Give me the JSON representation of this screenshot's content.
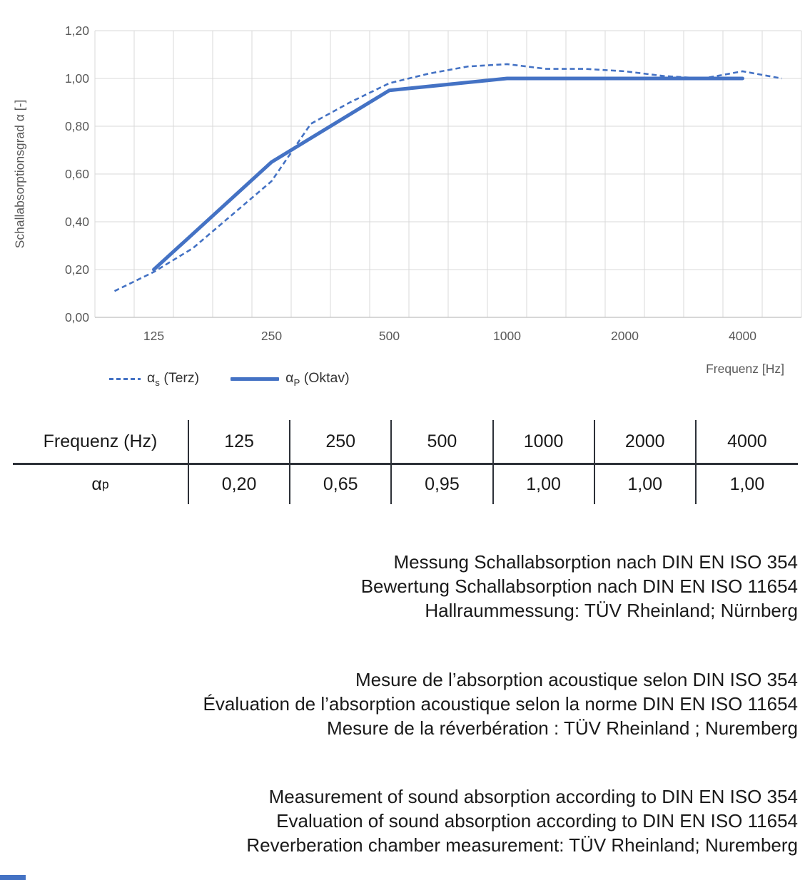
{
  "colors": {
    "line_blue": "#4472C4",
    "grid_gray": "#D9D9D9",
    "axis_line_gray": "#BFBFBF",
    "axis_text_gray": "#595959",
    "body_text": "#1A1A1A",
    "table_line": "#2D3138"
  },
  "chart": {
    "y_axis_title": "Schallabsorptionsgrad α [-]",
    "x_axis_title": "Frequenz [Hz]",
    "y_tick_labels": [
      "1,20",
      "1,00",
      "0,80",
      "0,60",
      "0,40",
      "0,20",
      "0,00"
    ],
    "x_tick_labels": [
      "125",
      "250",
      "500",
      "1000",
      "2000",
      "4000"
    ],
    "legend": {
      "terz": {
        "alpha": "α",
        "sub": "s",
        "rest": " (Terz)"
      },
      "oktav": {
        "alpha": "α",
        "sub": "P",
        "rest": " (Oktav)"
      }
    }
  },
  "chart_data": {
    "type": "line",
    "title": "",
    "xlabel": "Frequenz [Hz]",
    "ylabel": "Schallabsorptionsgrad α [-]",
    "x_scale": "logarithmic (third-octave band categories)",
    "x_categories": [
      100,
      125,
      160,
      200,
      250,
      315,
      400,
      500,
      630,
      800,
      1000,
      1250,
      1600,
      2000,
      2500,
      3150,
      4000,
      5000
    ],
    "x_tick_labels": [
      "125",
      "250",
      "500",
      "1000",
      "2000",
      "4000"
    ],
    "ylim": [
      0,
      1.2
    ],
    "y_tick_step": 0.2,
    "grid": true,
    "legend_position": "below-left",
    "series": [
      {
        "name": "αs (Terz)",
        "style": "dashed",
        "color": "#4472C4",
        "x": [
          100,
          125,
          160,
          200,
          250,
          315,
          400,
          500,
          630,
          800,
          1000,
          1250,
          1600,
          2000,
          2500,
          3150,
          4000,
          5000
        ],
        "values": [
          0.11,
          0.19,
          0.29,
          0.43,
          0.57,
          0.81,
          0.9,
          0.98,
          1.02,
          1.05,
          1.06,
          1.04,
          1.04,
          1.03,
          1.01,
          1.0,
          1.03,
          1.0
        ]
      },
      {
        "name": "αP (Oktav)",
        "style": "solid",
        "color": "#4472C4",
        "x": [
          125,
          250,
          500,
          1000,
          2000,
          4000
        ],
        "values": [
          0.2,
          0.65,
          0.95,
          1.0,
          1.0,
          1.0
        ]
      }
    ]
  },
  "table": {
    "header": [
      "Frequenz (Hz)",
      "125",
      "250",
      "500",
      "1000",
      "2000",
      "4000"
    ],
    "row_label": {
      "alpha": "α",
      "sub": "p"
    },
    "values": [
      "0,20",
      "0,65",
      "0,95",
      "1,00",
      "1,00",
      "1,00"
    ]
  },
  "notes": {
    "de": [
      "Messung Schallabsorption nach DIN EN ISO 354",
      "Bewertung Schallabsorption nach DIN EN ISO 11654",
      "Hallraummessung: TÜV Rheinland; Nürnberg"
    ],
    "fr": [
      "Mesure de l’absorption acoustique selon DIN ISO 354",
      "Évaluation de l’absorption acoustique selon la norme DIN EN ISO 11654",
      "Mesure de la réverbération : TÜV Rheinland ; Nuremberg"
    ],
    "en": [
      "Measurement of sound absorption according to DIN EN ISO 354",
      "Evaluation of sound absorption according to DIN EN ISO 11654",
      "Reverberation chamber measurement: TÜV Rheinland; Nuremberg"
    ]
  }
}
